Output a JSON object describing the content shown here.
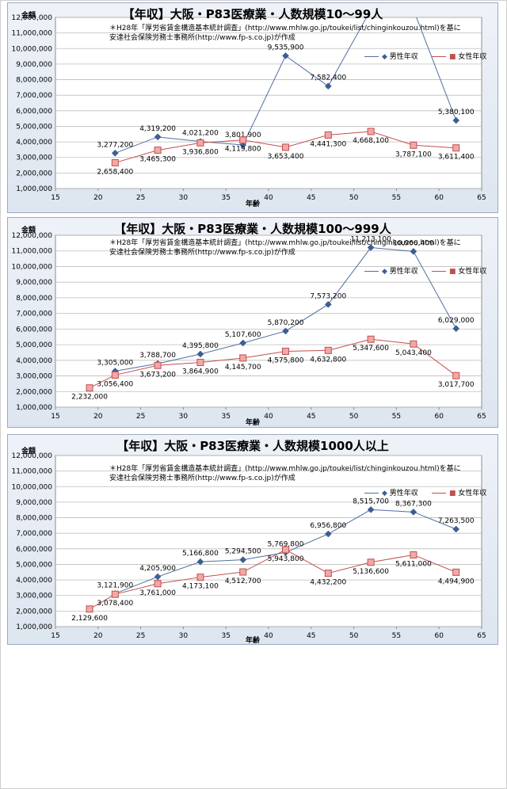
{
  "colors": {
    "male": "#4f6fa0",
    "male_marker": "#3b5f95",
    "female": "#c0504d",
    "female_marker_fill": "#f2a8a6"
  },
  "note": {
    "line1": "＊H28年「厚労省賃金構造基本統計調査」(http://www.mhlw.go.jp/toukei/list/chinginkouzou.html)を基に",
    "line2": "安達社会保険労務士事務所(http://www.fp-s.co.jp)が作成"
  },
  "chart_data": [
    {
      "type": "line",
      "title": "【年収】大阪・P83医療業・人数規模10～99人",
      "xlabel": "年齢",
      "ylabel": "金額",
      "xlim": [
        15,
        65
      ],
      "ylim": [
        1000000,
        12000000
      ],
      "xticks": [
        15,
        20,
        25,
        30,
        35,
        40,
        45,
        50,
        55,
        60,
        65
      ],
      "yticks": [
        1000000,
        2000000,
        3000000,
        4000000,
        5000000,
        6000000,
        7000000,
        8000000,
        9000000,
        10000000,
        11000000,
        12000000
      ],
      "grid": "horizontal",
      "legend_position": "right",
      "series": [
        {
          "name": "男性年収",
          "x": [
            22,
            27,
            32,
            37,
            42,
            47,
            52,
            57,
            62
          ],
          "values": [
            3277200,
            4319200,
            4021200,
            3801900,
            9535900,
            7582400,
            12500000,
            12500000,
            5380100
          ],
          "labels": [
            "3,277,200",
            "4,319,200",
            "4,021,200",
            "3,801,900",
            "9,535,900",
            "7,582,400",
            "",
            "",
            "5,380,100"
          ]
        },
        {
          "name": "女性年収",
          "x": [
            22,
            27,
            32,
            37,
            42,
            47,
            52,
            57,
            62
          ],
          "values": [
            2658400,
            3465300,
            3936800,
            4119800,
            3653400,
            4441300,
            4668100,
            3787100,
            3611400
          ],
          "labels": [
            "2,658,400",
            "3,465,300",
            "3,936,800",
            "4,119,800",
            "3,653,400",
            "4,441,300",
            "4,668,100",
            "3,787,100",
            "3,611,400"
          ]
        }
      ]
    },
    {
      "type": "line",
      "title": "【年収】大阪・P83医療業・人数規模100～999人",
      "xlabel": "年齢",
      "ylabel": "金額",
      "xlim": [
        15,
        65
      ],
      "ylim": [
        1000000,
        12000000
      ],
      "xticks": [
        15,
        20,
        25,
        30,
        35,
        40,
        45,
        50,
        55,
        60,
        65
      ],
      "yticks": [
        1000000,
        2000000,
        3000000,
        4000000,
        5000000,
        6000000,
        7000000,
        8000000,
        9000000,
        10000000,
        11000000,
        12000000
      ],
      "grid": "horizontal",
      "legend_position": "right",
      "series": [
        {
          "name": "男性年収",
          "x": [
            22,
            27,
            32,
            37,
            42,
            47,
            52,
            57,
            62
          ],
          "values": [
            3305000,
            3788700,
            4395800,
            5107600,
            5870200,
            7573200,
            11213100,
            10966400,
            6029000
          ],
          "labels": [
            "3,305,000",
            "3,788,700",
            "4,395,800",
            "5,107,600",
            "5,870,200",
            "7,573,200",
            "11,213,100",
            "10,966,400",
            "6,029,000"
          ]
        },
        {
          "name": "女性年収",
          "x": [
            19,
            22,
            27,
            32,
            37,
            42,
            47,
            52,
            57,
            62
          ],
          "values": [
            2232000,
            3056400,
            3673200,
            3864900,
            4145700,
            4575800,
            4632800,
            5347600,
            5043400,
            3017700
          ],
          "labels": [
            "2,232,000",
            "3,056,400",
            "3,673,200",
            "3,864,900",
            "4,145,700",
            "4,575,800",
            "4,632,800",
            "5,347,600",
            "5,043,400",
            "3,017,700"
          ]
        }
      ]
    },
    {
      "type": "line",
      "title": "【年収】大阪・P83医療業・人数規模1000人以上",
      "xlabel": "年齢",
      "ylabel": "金額",
      "xlim": [
        15,
        65
      ],
      "ylim": [
        1000000,
        12000000
      ],
      "xticks": [
        15,
        20,
        25,
        30,
        35,
        40,
        45,
        50,
        55,
        60,
        65
      ],
      "yticks": [
        1000000,
        2000000,
        3000000,
        4000000,
        5000000,
        6000000,
        7000000,
        8000000,
        9000000,
        10000000,
        11000000,
        12000000
      ],
      "grid": "horizontal",
      "legend_position": "right",
      "series": [
        {
          "name": "男性年収",
          "x": [
            22,
            27,
            32,
            37,
            42,
            47,
            52,
            57,
            62
          ],
          "values": [
            3121900,
            4205900,
            5166800,
            5294500,
            5769800,
            6956800,
            8515700,
            8367300,
            7263500
          ],
          "labels": [
            "3,121,900",
            "4,205,900",
            "5,166,800",
            "5,294,500",
            "5,769,800",
            "6,956,800",
            "8,515,700",
            "8,367,300",
            "7,263,500"
          ]
        },
        {
          "name": "女性年収",
          "x": [
            19,
            22,
            27,
            32,
            37,
            42,
            47,
            52,
            57,
            62
          ],
          "values": [
            2129600,
            3078400,
            3761000,
            4173100,
            4512700,
            5943800,
            4432200,
            5136600,
            5611000,
            4494900
          ],
          "labels": [
            "2,129,600",
            "3,078,400",
            "3,761,000",
            "4,173,100",
            "4,512,700",
            "5,943,800",
            "4,432,200",
            "5,136,600",
            "5,611,000",
            "4,494,900"
          ]
        }
      ]
    }
  ]
}
